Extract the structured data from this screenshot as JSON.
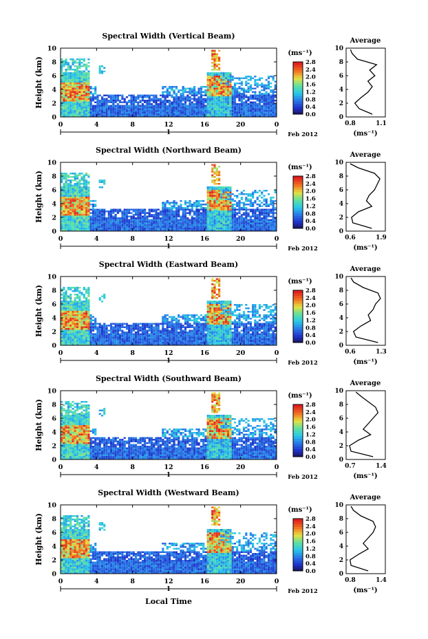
{
  "figure": {
    "x_axis_title": "Local Time"
  },
  "chart_data": [
    {
      "type": "heatmap",
      "title": "Spectral Width (Vertical Beam)",
      "ylabel": "Height (km)",
      "ylim": [
        0,
        10
      ],
      "yticks": [
        "0",
        "2",
        "4",
        "6",
        "8",
        "10"
      ],
      "xlim": [
        0,
        24
      ],
      "xticks": [
        "0",
        "4",
        "8",
        "12",
        "16",
        "20",
        "0"
      ],
      "date_marker": "1",
      "date_label": "Feb 2012",
      "colorbar": {
        "unit": "(ms⁻¹)",
        "ticks": [
          "0.0",
          "0.4",
          "0.8",
          "1.2",
          "1.6",
          "2.0",
          "2.4",
          "2.8"
        ]
      },
      "profile": {
        "title": "Average",
        "xlabel": "(ms⁻¹)",
        "xticks": [
          "0.8",
          "1.1"
        ],
        "xlim": [
          0.75,
          1.2
        ],
        "yticks": [
          "0",
          "2",
          "4",
          "6",
          "8",
          "10"
        ],
        "heights": [
          0.4,
          1.2,
          2.0,
          2.8,
          3.6,
          4.4,
          5.2,
          6.0,
          6.8,
          7.6,
          8.4,
          9.2,
          9.8
        ],
        "values": [
          1.05,
          0.9,
          0.85,
          0.92,
          1.0,
          1.05,
          1.0,
          1.08,
          1.02,
          1.1,
          0.88,
          0.82,
          0.8
        ]
      }
    },
    {
      "type": "heatmap",
      "title": "Spectral Width (Northward Beam)",
      "ylabel": "Height (km)",
      "ylim": [
        0,
        10
      ],
      "yticks": [
        "0",
        "2",
        "4",
        "6",
        "8",
        "10"
      ],
      "xlim": [
        0,
        24
      ],
      "xticks": [
        "0",
        "4",
        "8",
        "12",
        "16",
        "20",
        "0"
      ],
      "date_marker": "1",
      "date_label": "Feb 2012",
      "colorbar": {
        "unit": "(ms⁻¹)",
        "ticks": [
          "0.0",
          "0.4",
          "0.8",
          "1.2",
          "1.6",
          "2.0",
          "2.4",
          "2.8"
        ]
      },
      "profile": {
        "title": "Average",
        "xlabel": "(ms⁻¹)",
        "xticks": [
          "0.6",
          "1.9"
        ],
        "xlim": [
          0.55,
          2.0
        ],
        "yticks": [
          "0",
          "2",
          "4",
          "6",
          "8",
          "10"
        ],
        "heights": [
          0.4,
          1.2,
          2.0,
          2.8,
          3.6,
          4.4,
          5.2,
          6.0,
          6.8,
          7.6,
          8.4,
          9.2,
          9.8
        ],
        "values": [
          1.5,
          0.8,
          0.75,
          1.0,
          1.5,
          1.3,
          1.4,
          1.6,
          1.7,
          1.8,
          1.6,
          1.0,
          0.7
        ]
      }
    },
    {
      "type": "heatmap",
      "title": "Spectral Width (Eastward Beam)",
      "ylabel": "Height (km)",
      "ylim": [
        0,
        10
      ],
      "yticks": [
        "0",
        "2",
        "4",
        "6",
        "8",
        "10"
      ],
      "xlim": [
        0,
        24
      ],
      "xticks": [
        "0",
        "4",
        "8",
        "12",
        "16",
        "20",
        "0"
      ],
      "date_marker": "1",
      "date_label": "Feb 2012",
      "colorbar": {
        "unit": "(ms⁻¹)",
        "ticks": [
          "0.0",
          "0.4",
          "0.8",
          "1.2",
          "1.6",
          "2.0",
          "2.4",
          "2.8"
        ]
      },
      "profile": {
        "title": "Average",
        "xlabel": "(ms⁻¹)",
        "xticks": [
          "0.6",
          "1.3"
        ],
        "xlim": [
          0.55,
          1.35
        ],
        "yticks": [
          "0",
          "2",
          "4",
          "6",
          "8",
          "10"
        ],
        "heights": [
          0.4,
          1.2,
          2.0,
          2.8,
          3.6,
          4.4,
          5.2,
          6.0,
          6.8,
          7.6,
          8.4,
          9.2,
          9.8
        ],
        "values": [
          1.2,
          0.75,
          0.7,
          0.85,
          1.05,
          1.0,
          1.1,
          1.15,
          1.25,
          1.2,
          0.9,
          0.7,
          0.65
        ]
      }
    },
    {
      "type": "heatmap",
      "title": "Spectral Width (Southward Beam)",
      "ylabel": "Height (km)",
      "ylim": [
        0,
        10
      ],
      "yticks": [
        "0",
        "2",
        "4",
        "6",
        "8",
        "10"
      ],
      "xlim": [
        0,
        24
      ],
      "xticks": [
        "0",
        "4",
        "8",
        "12",
        "16",
        "20",
        "0"
      ],
      "date_marker": "1",
      "date_label": "Feb 2012",
      "colorbar": {
        "unit": "(ms⁻¹)",
        "ticks": [
          "0.0",
          "0.4",
          "0.8",
          "1.2",
          "1.6",
          "2.0",
          "2.4",
          "2.8"
        ]
      },
      "profile": {
        "title": "Average",
        "xlabel": "(ms⁻¹)",
        "xticks": [
          "0.7",
          "1.4"
        ],
        "xlim": [
          0.65,
          1.45
        ],
        "yticks": [
          "0",
          "2",
          "4",
          "6",
          "8",
          "10"
        ],
        "heights": [
          0.4,
          1.2,
          2.0,
          2.8,
          3.6,
          4.4,
          5.2,
          6.0,
          6.8,
          7.6,
          8.4,
          9.2,
          9.8
        ],
        "values": [
          1.2,
          0.75,
          0.72,
          0.9,
          1.15,
          1.0,
          1.1,
          1.2,
          1.3,
          1.25,
          1.1,
          0.95,
          0.85
        ]
      }
    },
    {
      "type": "heatmap",
      "title": "Spectral Width (Westward Beam)",
      "ylabel": "Height (km)",
      "ylim": [
        0,
        10
      ],
      "yticks": [
        "0",
        "2",
        "4",
        "6",
        "8",
        "10"
      ],
      "xlim": [
        0,
        24
      ],
      "xticks": [
        "0",
        "4",
        "8",
        "12",
        "16",
        "20",
        "0"
      ],
      "date_marker": "1",
      "date_label": "Feb 2012",
      "colorbar": {
        "unit": "(ms⁻¹)",
        "ticks": [
          "0.0",
          "0.4",
          "0.8",
          "1.2",
          "1.6",
          "2.0",
          "2.4",
          "2.8"
        ]
      },
      "profile": {
        "title": "Average",
        "xlabel": "(ms⁻¹)",
        "xticks": [
          "0.8",
          "1.4"
        ],
        "xlim": [
          0.7,
          1.5
        ],
        "yticks": [
          "0",
          "2",
          "4",
          "6",
          "8",
          "10"
        ],
        "heights": [
          0.4,
          1.2,
          2.0,
          2.8,
          3.6,
          4.4,
          5.2,
          6.0,
          6.8,
          7.6,
          8.4,
          9.2,
          9.8
        ],
        "values": [
          1.15,
          0.8,
          0.78,
          0.95,
          1.15,
          1.05,
          1.15,
          1.25,
          1.3,
          1.25,
          1.0,
          0.85,
          0.8
        ]
      }
    }
  ]
}
